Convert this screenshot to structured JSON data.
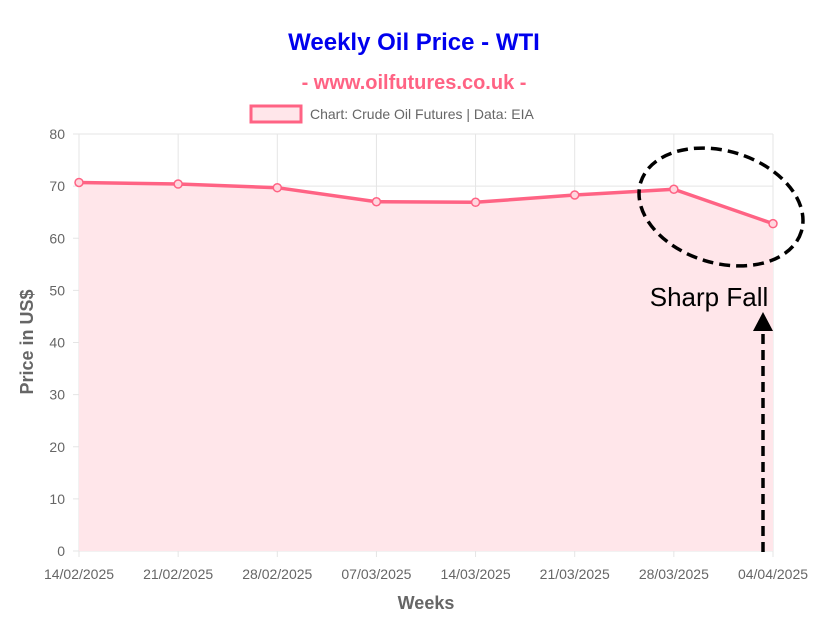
{
  "chart_data": {
    "type": "area",
    "title": "Weekly Oil Price - WTI",
    "subtitle": "- www.oilfutures.co.uk -",
    "legend": {
      "label": "Chart: Crude Oil Futures | Data: EIA",
      "placement": "top-center"
    },
    "xlabel": "Weeks",
    "ylabel": "Price in US$",
    "categories": [
      "14/02/2025",
      "21/02/2025",
      "28/02/2025",
      "07/03/2025",
      "14/03/2025",
      "21/03/2025",
      "28/03/2025",
      "04/04/2025"
    ],
    "series": [
      {
        "name": "Chart: Crude Oil Futures | Data: EIA",
        "values": [
          70.7,
          70.4,
          69.7,
          67.0,
          66.9,
          68.3,
          69.4,
          62.8
        ]
      }
    ],
    "ylim": [
      0,
      80
    ],
    "yticks": [
      0,
      10,
      20,
      30,
      40,
      50,
      60,
      70,
      80
    ],
    "grid": true,
    "annotation": {
      "text": "Sharp Fall",
      "target_category": "04/04/2025"
    },
    "colors": {
      "title": "#0000ee",
      "subtitle": "#ff6384",
      "line": "#ff6384",
      "fill": "#ffe6ea",
      "grid": "#e5e5e5",
      "axis_text": "#666666",
      "annotation": "#000000"
    }
  }
}
